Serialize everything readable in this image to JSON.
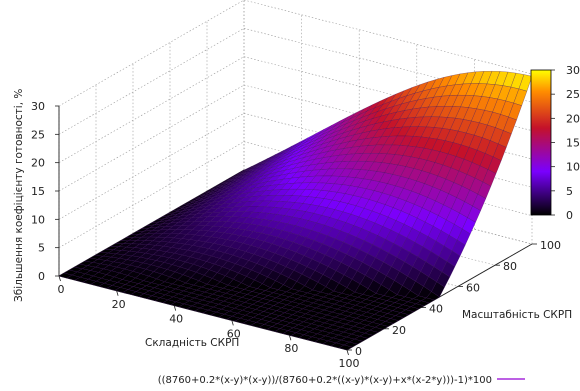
{
  "chart_data": {
    "type": "surface3d",
    "formula": "((8760+0.2*(x-y)*(x-y))/(8760+0.2*((x-y)*(x-y)+x*(x-2*y)))-1)*100",
    "xlabel": "Складність СКРП",
    "ylabel": "Масштабність СКРП",
    "zlabel": "Збільшення коефіцієнту готовності, %",
    "xlim": [
      0,
      100
    ],
    "ylim": [
      0,
      100
    ],
    "zlim": [
      0,
      30
    ],
    "x_ticks": [
      "0",
      "20",
      "40",
      "60",
      "80",
      "100"
    ],
    "y_ticks": [
      "0",
      "20",
      "40",
      "60",
      "80",
      "100"
    ],
    "z_ticks": [
      "0",
      "5",
      "10",
      "15",
      "20",
      "25",
      "30"
    ],
    "colorbar_ticks": [
      "0",
      "5",
      "10",
      "15",
      "20",
      "25",
      "30"
    ],
    "colorbar_range": [
      0,
      30
    ],
    "palette": [
      "#000000",
      "#7a00ff",
      "#c4112a",
      "#ff8c00",
      "#ffff00"
    ],
    "grid": true,
    "legend_entry": "((8760+0.2*(x-y)*(x-y))/(8760+0.2*((x-y)*(x-y)+x*(x-2*y)))-1)*100",
    "legend_color": "#9400d3",
    "legend_position": "bottom-right"
  }
}
